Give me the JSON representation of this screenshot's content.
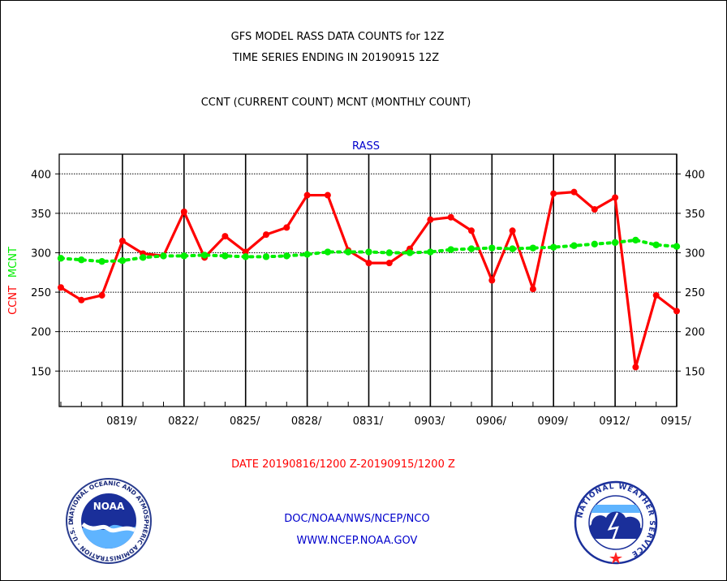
{
  "header": {
    "title_line1": "GFS MODEL RASS DATA COUNTS for 12Z",
    "title_line2": "TIME SERIES ENDING IN 20190915 12Z",
    "subtitle": "CCNT (CURRENT COUNT) MCNT (MONTHLY COUNT)"
  },
  "footer": {
    "date_range": "DATE 20190816/1200 Z-20190915/1200 Z",
    "org_line1": "DOC/NOAA/NWS/NCEP/NCO",
    "org_line2": "WWW.NCEP.NOAA.GOV",
    "noaa_logo_text": "NOAA",
    "noaa_ring_text": "NATIONAL OCEANIC AND ATMOSPHERIC ADMINISTRATION · U.S. DEPARTMENT OF COMMERCE ·",
    "nws_ring_text": "NATIONAL WEATHER SERVICE"
  },
  "colors": {
    "current": "#ff0000",
    "monthly": "#00ee00",
    "series_title": "#0000cc",
    "footer_blue": "#0000cc"
  },
  "chart_data": {
    "type": "line",
    "title": "RASS",
    "ylabel_current": "CCNT",
    "ylabel_monthly": "MCNT",
    "ylim": [
      105,
      425
    ],
    "yticks": [
      150,
      200,
      250,
      300,
      350,
      400
    ],
    "grid": true,
    "x": [
      "0816",
      "0817",
      "0818",
      "0819",
      "0820",
      "0821",
      "0822",
      "0823",
      "0824",
      "0825",
      "0826",
      "0827",
      "0828",
      "0829",
      "0830",
      "0831",
      "0901",
      "0902",
      "0903",
      "0904",
      "0905",
      "0906",
      "0907",
      "0908",
      "0909",
      "0910",
      "0911",
      "0912",
      "0913",
      "0914",
      "0915"
    ],
    "xtick_labels": [
      "0819/",
      "0822/",
      "0825/",
      "0828/",
      "0831/",
      "0903/",
      "0906/",
      "0909/",
      "0912/",
      "0915/"
    ],
    "series": [
      {
        "name": "CCNT",
        "key": "current",
        "values": [
          256,
          240,
          246,
          315,
          299,
          296,
          352,
          294,
          321,
          301,
          323,
          332,
          373,
          373,
          303,
          287,
          287,
          305,
          342,
          345,
          328,
          265,
          328,
          254,
          375,
          377,
          355,
          370,
          155,
          246,
          226
        ]
      },
      {
        "name": "MCNT",
        "key": "monthly",
        "values": [
          293,
          291,
          289,
          290,
          294,
          296,
          296,
          297,
          296,
          295,
          295,
          296,
          298,
          301,
          301,
          301,
          300,
          300,
          301,
          304,
          305,
          306,
          305,
          306,
          307,
          309,
          311,
          313,
          316,
          310,
          308
        ]
      }
    ]
  }
}
